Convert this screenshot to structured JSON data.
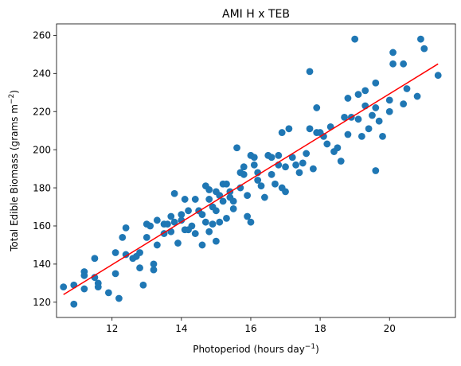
{
  "chart_data": {
    "type": "scatter",
    "title": "AMI H x TEB",
    "xlabel": "Photoperiod (hours day",
    "xlabel_sup": "−1",
    "xlabel_end": ")",
    "ylabel": "Total Edible Biomass (grams m",
    "ylabel_sup": "−2",
    "ylabel_end": ")",
    "xlim": [
      10.4,
      21.9
    ],
    "ylim": [
      112,
      266
    ],
    "xticks": [
      12,
      14,
      16,
      18,
      20
    ],
    "yticks": [
      120,
      140,
      160,
      180,
      200,
      220,
      240,
      260
    ],
    "grid": false,
    "point_color": "#1f77b4",
    "line_color": "#ff0000",
    "fit_line": {
      "x": [
        10.6,
        21.4
      ],
      "y": [
        124,
        245
      ]
    },
    "points": [
      [
        10.6,
        128
      ],
      [
        10.9,
        129
      ],
      [
        10.9,
        119
      ],
      [
        11.2,
        136
      ],
      [
        11.2,
        134
      ],
      [
        11.2,
        127
      ],
      [
        11.5,
        143
      ],
      [
        11.5,
        133
      ],
      [
        11.6,
        130
      ],
      [
        11.6,
        128
      ],
      [
        11.9,
        125
      ],
      [
        12.1,
        146
      ],
      [
        12.1,
        135
      ],
      [
        12.2,
        122
      ],
      [
        12.3,
        154
      ],
      [
        12.4,
        159
      ],
      [
        12.4,
        145
      ],
      [
        12.6,
        143
      ],
      [
        12.7,
        144
      ],
      [
        12.8,
        146
      ],
      [
        12.8,
        138
      ],
      [
        12.9,
        129
      ],
      [
        13.0,
        161
      ],
      [
        13.0,
        154
      ],
      [
        13.1,
        160
      ],
      [
        13.2,
        140
      ],
      [
        13.2,
        137
      ],
      [
        13.3,
        163
      ],
      [
        13.3,
        150
      ],
      [
        13.5,
        161
      ],
      [
        13.5,
        156
      ],
      [
        13.6,
        161
      ],
      [
        13.7,
        165
      ],
      [
        13.7,
        157
      ],
      [
        13.8,
        177
      ],
      [
        13.8,
        162
      ],
      [
        13.9,
        151
      ],
      [
        14.0,
        163
      ],
      [
        14.0,
        166
      ],
      [
        14.1,
        158
      ],
      [
        14.1,
        174
      ],
      [
        14.2,
        168
      ],
      [
        14.2,
        158
      ],
      [
        14.3,
        160
      ],
      [
        14.4,
        174
      ],
      [
        14.4,
        156
      ],
      [
        14.5,
        168
      ],
      [
        14.6,
        166
      ],
      [
        14.6,
        150
      ],
      [
        14.7,
        181
      ],
      [
        14.7,
        162
      ],
      [
        14.8,
        179
      ],
      [
        14.8,
        174
      ],
      [
        14.8,
        157
      ],
      [
        14.9,
        170
      ],
      [
        14.9,
        161
      ],
      [
        15.0,
        178
      ],
      [
        15.0,
        168
      ],
      [
        15.0,
        152
      ],
      [
        15.1,
        176
      ],
      [
        15.1,
        162
      ],
      [
        15.2,
        182
      ],
      [
        15.2,
        173
      ],
      [
        15.3,
        182
      ],
      [
        15.3,
        164
      ],
      [
        15.4,
        175
      ],
      [
        15.4,
        178
      ],
      [
        15.5,
        173
      ],
      [
        15.5,
        169
      ],
      [
        15.6,
        201
      ],
      [
        15.7,
        188
      ],
      [
        15.7,
        180
      ],
      [
        15.8,
        191
      ],
      [
        15.8,
        187
      ],
      [
        15.9,
        176
      ],
      [
        15.9,
        165
      ],
      [
        16.0,
        197
      ],
      [
        16.0,
        162
      ],
      [
        16.1,
        196
      ],
      [
        16.1,
        192
      ],
      [
        16.2,
        188
      ],
      [
        16.2,
        184
      ],
      [
        16.3,
        181
      ],
      [
        16.4,
        175
      ],
      [
        16.5,
        197
      ],
      [
        16.6,
        187
      ],
      [
        16.6,
        196
      ],
      [
        16.7,
        182
      ],
      [
        16.8,
        197
      ],
      [
        16.8,
        192
      ],
      [
        16.9,
        209
      ],
      [
        16.9,
        180
      ],
      [
        17.0,
        191
      ],
      [
        17.0,
        178
      ],
      [
        17.1,
        211
      ],
      [
        17.2,
        196
      ],
      [
        17.3,
        192
      ],
      [
        17.4,
        188
      ],
      [
        17.5,
        193
      ],
      [
        17.6,
        198
      ],
      [
        17.7,
        241
      ],
      [
        17.7,
        211
      ],
      [
        17.8,
        190
      ],
      [
        17.9,
        222
      ],
      [
        17.9,
        209
      ],
      [
        18.0,
        209
      ],
      [
        18.1,
        207
      ],
      [
        18.2,
        203
      ],
      [
        18.3,
        212
      ],
      [
        18.4,
        199
      ],
      [
        18.5,
        201
      ],
      [
        18.6,
        194
      ],
      [
        18.7,
        217
      ],
      [
        18.8,
        227
      ],
      [
        18.8,
        208
      ],
      [
        18.9,
        217
      ],
      [
        19.0,
        258
      ],
      [
        19.1,
        216
      ],
      [
        19.1,
        229
      ],
      [
        19.2,
        207
      ],
      [
        19.3,
        231
      ],
      [
        19.3,
        223
      ],
      [
        19.4,
        211
      ],
      [
        19.5,
        218
      ],
      [
        19.6,
        189
      ],
      [
        19.6,
        235
      ],
      [
        19.6,
        222
      ],
      [
        19.7,
        215
      ],
      [
        19.8,
        207
      ],
      [
        20.0,
        220
      ],
      [
        20.0,
        226
      ],
      [
        20.1,
        251
      ],
      [
        20.1,
        245
      ],
      [
        20.4,
        245
      ],
      [
        20.4,
        224
      ],
      [
        20.5,
        232
      ],
      [
        20.8,
        228
      ],
      [
        20.9,
        258
      ],
      [
        21.0,
        253
      ],
      [
        21.4,
        239
      ]
    ]
  }
}
